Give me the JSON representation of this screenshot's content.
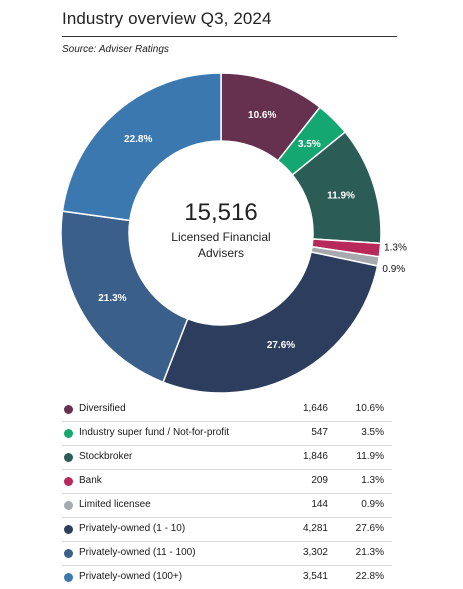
{
  "header": {
    "title": "Industry overview Q3, 2024",
    "source": "Source: Adviser Ratings"
  },
  "center": {
    "total": "15,516",
    "line1": "Licensed Financial",
    "line2": "Advisers"
  },
  "chart_data": {
    "type": "pie",
    "title": "Industry overview Q3, 2024",
    "total": 15516,
    "segments": [
      {
        "name": "Diversified",
        "count": 1646,
        "count_label": "1,646",
        "percent": 10.6,
        "percent_label": "10.6%",
        "color": "#66304f",
        "label_color": "#ffffff",
        "outside": false
      },
      {
        "name": "Industry super fund / Not-for-profit",
        "count": 547,
        "count_label": "547",
        "percent": 3.5,
        "percent_label": "3.5%",
        "color": "#14a771",
        "label_color": "#ffffff",
        "outside": false
      },
      {
        "name": "Stockbroker",
        "count": 1846,
        "count_label": "1,846",
        "percent": 11.9,
        "percent_label": "11.9%",
        "color": "#2b5c55",
        "label_color": "#ffffff",
        "outside": false
      },
      {
        "name": "Bank",
        "count": 209,
        "count_label": "209",
        "percent": 1.3,
        "percent_label": "1.3%",
        "color": "#b8295b",
        "label_color": "#111111",
        "outside": true
      },
      {
        "name": "Limited licensee",
        "count": 144,
        "count_label": "144",
        "percent": 0.9,
        "percent_label": "0.9%",
        "color": "#a6a9ae",
        "label_color": "#111111",
        "outside": true
      },
      {
        "name": "Privately-owned (1 - 10)",
        "count": 4281,
        "count_label": "4,281",
        "percent": 27.6,
        "percent_label": "27.6%",
        "color": "#2c3d5d",
        "label_color": "#ffffff",
        "outside": false
      },
      {
        "name": "Privately-owned (11 - 100)",
        "count": 3302,
        "count_label": "3,302",
        "percent": 21.3,
        "percent_label": "21.3%",
        "color": "#3a5f8a",
        "label_color": "#ffffff",
        "outside": false
      },
      {
        "name": "Privately-owned (100+)",
        "count": 3541,
        "count_label": "3,541",
        "percent": 22.8,
        "percent_label": "22.8%",
        "color": "#3b78b0",
        "label_color": "#ffffff",
        "outside": false
      }
    ]
  }
}
